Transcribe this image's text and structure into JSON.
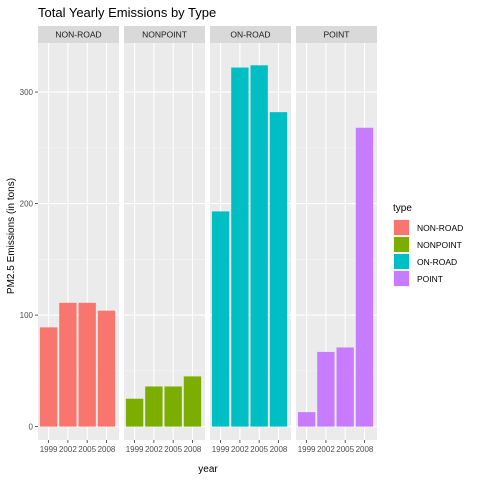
{
  "chart_data": {
    "type": "bar",
    "title": "Total Yearly Emissions by Type",
    "xlabel": "year",
    "ylabel": "PM2.5 Emissions (in tons)",
    "ylim": [
      -12,
      344
    ],
    "yticks": [
      0,
      100,
      200,
      300
    ],
    "categories": [
      "1999",
      "2002",
      "2005",
      "2008"
    ],
    "facets": [
      {
        "name": "NON-ROAD",
        "color": "#F8766D",
        "values": [
          89,
          111,
          111,
          104
        ]
      },
      {
        "name": "NONPOINT",
        "color": "#7CAE00",
        "values": [
          25,
          36,
          36,
          45
        ]
      },
      {
        "name": "ON-ROAD",
        "color": "#00BFC4",
        "values": [
          193,
          322,
          324,
          282
        ]
      },
      {
        "name": "POINT",
        "color": "#C77CFF",
        "values": [
          13,
          67,
          71,
          268
        ]
      }
    ],
    "legend": {
      "title": "type",
      "placement": "right",
      "items": [
        "NON-ROAD",
        "NONPOINT",
        "ON-ROAD",
        "POINT"
      ]
    },
    "grid": true
  }
}
